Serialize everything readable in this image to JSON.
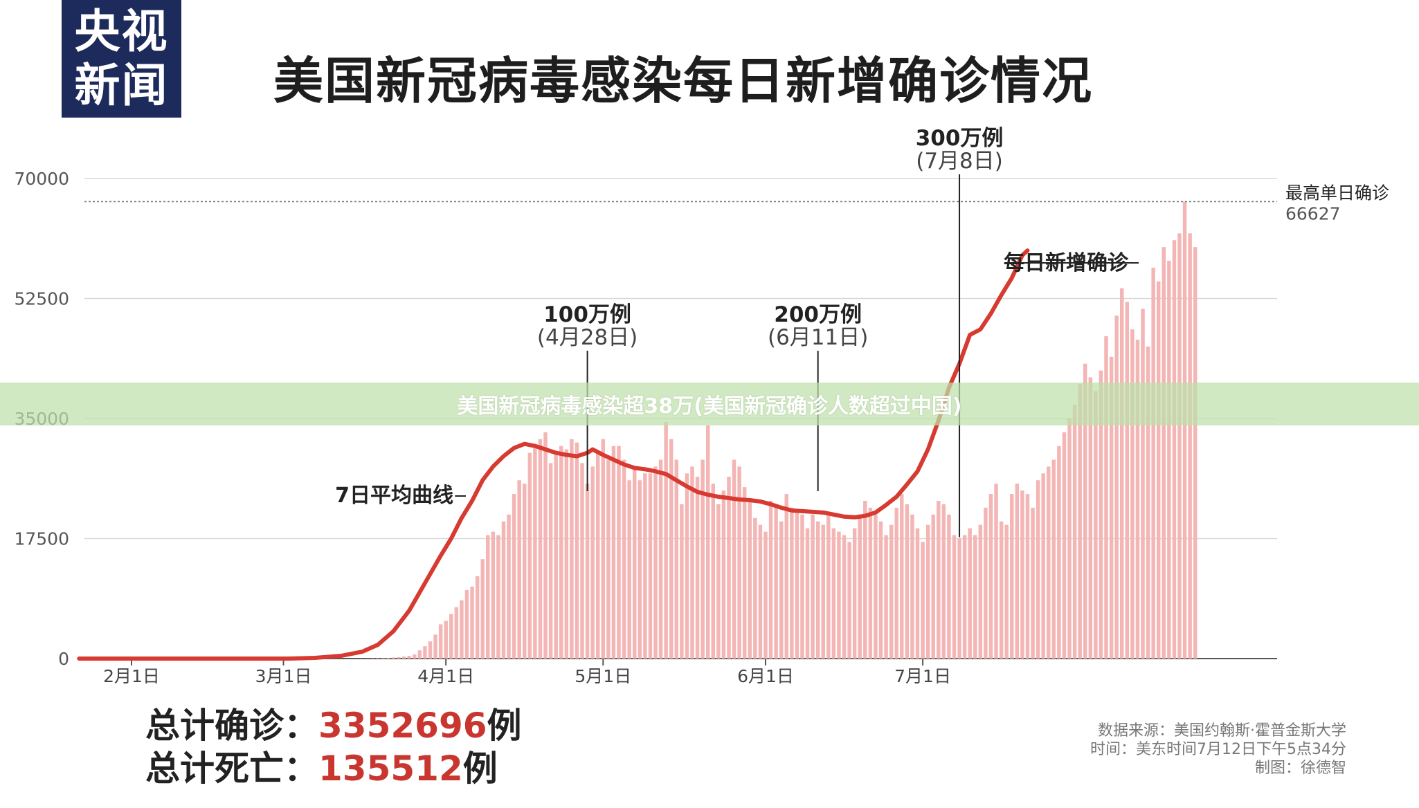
{
  "logo": {
    "line1": "央视",
    "line2": "新闻"
  },
  "title": "美国新冠病毒感染每日新增确诊情况",
  "banner": "美国新冠病毒感染超38万(美国新冠确诊人数超过中国)",
  "totals": {
    "confirmed_label": "总计确诊：",
    "confirmed_value": "3352696",
    "deaths_label": "总计死亡：",
    "deaths_value": "135512",
    "unit": "例"
  },
  "source": {
    "line1": "数据来源：美国约翰斯·霍普金斯大学",
    "line2": "时间：美东时间7月12日下午5点34分",
    "line3": "制图：徐德智"
  },
  "colors": {
    "bar": "#f4b5b5",
    "line": "#d63a30",
    "title": "#1e1e1e",
    "accent": "#c9362f",
    "logo": "#1c2a5c"
  },
  "chart_data": {
    "type": "bar",
    "title": "美国新冠病毒感染每日新增确诊情况",
    "ylim": [
      0,
      70000
    ],
    "yticks": [
      "0",
      "17500",
      "35000",
      "52500",
      "70000"
    ],
    "xticks": [
      {
        "label": "2月1日",
        "day": 10
      },
      {
        "label": "3月1日",
        "day": 39
      },
      {
        "label": "4月1日",
        "day": 70
      },
      {
        "label": "5月1日",
        "day": 100
      },
      {
        "label": "6月1日",
        "day": 131
      },
      {
        "label": "7月1日",
        "day": 161
      }
    ],
    "grid": true,
    "max_line": {
      "label": "最高单日确诊",
      "value": 66627
    },
    "series": [
      {
        "name": "每日新增确诊",
        "type": "bar",
        "start_day": 42,
        "values": [
          1,
          1,
          1,
          1,
          1,
          2,
          2,
          2,
          3,
          5,
          10,
          15,
          20,
          30,
          45,
          60,
          80,
          100,
          150,
          200,
          300,
          400,
          600,
          1200,
          1800,
          2500,
          3500,
          5000,
          5500,
          6500,
          7500,
          8500,
          10000,
          10500,
          12000,
          14500,
          18000,
          18500,
          18000,
          20000,
          21000,
          24000,
          26000,
          25500,
          30000,
          31000,
          32000,
          33000,
          28500,
          30000,
          31000,
          30500,
          32000,
          31500,
          28500,
          25500,
          28000,
          30000,
          32000,
          29000,
          31000,
          31000,
          29000,
          26000,
          28000,
          26000,
          27000,
          27000,
          28000,
          29000,
          34500,
          32000,
          29000,
          22500,
          27000,
          28000,
          26500,
          29000,
          34000,
          25500,
          22500,
          24500,
          26500,
          29000,
          28000,
          25000,
          23000,
          20500,
          19500,
          18500,
          23000,
          22000,
          20000,
          24000,
          22000,
          21500,
          21000,
          19000,
          21000,
          20000,
          19500,
          21000,
          19000,
          18500,
          18000,
          17000,
          19000,
          21000,
          23000,
          22000,
          21000,
          20000,
          18000,
          19500,
          22000,
          24000,
          22500,
          21000,
          19000,
          17000,
          19500,
          21000,
          23000,
          22500,
          21000,
          18000,
          17500,
          18000,
          19000,
          18000,
          19500,
          22000,
          24000,
          25500,
          20000,
          19500,
          24000,
          25500,
          24500,
          24000,
          22000,
          26000,
          27000,
          28000,
          29000,
          31000,
          33000,
          35000,
          37000,
          40000,
          43000,
          41000,
          39000,
          42000,
          47000,
          44000,
          50000,
          54000,
          52000,
          48000,
          46500,
          51000,
          45500,
          57000,
          55000,
          60000,
          58000,
          61000,
          62000,
          66627,
          62000,
          60000
        ],
        "label_points": [
          {
            "label": "100万例",
            "date": "4月28日",
            "day": 97
          },
          {
            "label": "200万例",
            "date": "6月11日",
            "day": 141
          },
          {
            "label": "300万例",
            "date": "7月8日",
            "day": 168
          }
        ]
      },
      {
        "name": "7日平均曲线",
        "type": "line",
        "start_day": 0,
        "values": [
          [
            0,
            0
          ],
          [
            30,
            0
          ],
          [
            40,
            0
          ],
          [
            45,
            100
          ],
          [
            50,
            400
          ],
          [
            54,
            1000
          ],
          [
            57,
            2000
          ],
          [
            60,
            4000
          ],
          [
            63,
            7000
          ],
          [
            66,
            11000
          ],
          [
            69,
            15000
          ],
          [
            71,
            17500
          ],
          [
            73,
            20500
          ],
          [
            75,
            23000
          ],
          [
            77,
            26000
          ],
          [
            79,
            28000
          ],
          [
            81,
            29500
          ],
          [
            83,
            30700
          ],
          [
            85,
            31300
          ],
          [
            87,
            31000
          ],
          [
            89,
            30500
          ],
          [
            91,
            30000
          ],
          [
            93,
            29700
          ],
          [
            95,
            29500
          ],
          [
            97,
            30000
          ],
          [
            98,
            30500
          ],
          [
            99,
            30100
          ],
          [
            100,
            29700
          ],
          [
            102,
            29000
          ],
          [
            104,
            28300
          ],
          [
            106,
            27800
          ],
          [
            108,
            27600
          ],
          [
            110,
            27300
          ],
          [
            112,
            26900
          ],
          [
            114,
            26000
          ],
          [
            116,
            25100
          ],
          [
            118,
            24300
          ],
          [
            120,
            23900
          ],
          [
            122,
            23600
          ],
          [
            124,
            23400
          ],
          [
            126,
            23200
          ],
          [
            128,
            23100
          ],
          [
            130,
            22900
          ],
          [
            132,
            22500
          ],
          [
            134,
            22000
          ],
          [
            136,
            21600
          ],
          [
            138,
            21500
          ],
          [
            140,
            21400
          ],
          [
            142,
            21300
          ],
          [
            144,
            21000
          ],
          [
            146,
            20700
          ],
          [
            148,
            20600
          ],
          [
            150,
            20800
          ],
          [
            152,
            21300
          ],
          [
            154,
            22400
          ],
          [
            156,
            23600
          ],
          [
            158,
            25400
          ],
          [
            160,
            27300
          ],
          [
            162,
            30500
          ],
          [
            164,
            34700
          ],
          [
            166,
            39500
          ],
          [
            168,
            43000
          ],
          [
            170,
            47200
          ],
          [
            172,
            48000
          ],
          [
            174,
            50300
          ],
          [
            176,
            53000
          ],
          [
            178,
            55500
          ],
          [
            180,
            58800
          ],
          [
            181,
            59500
          ]
        ]
      }
    ],
    "annotations": [
      {
        "text": "7日平均曲线",
        "day": 72
      },
      {
        "text": "每日新增确诊",
        "day": 178
      }
    ]
  }
}
